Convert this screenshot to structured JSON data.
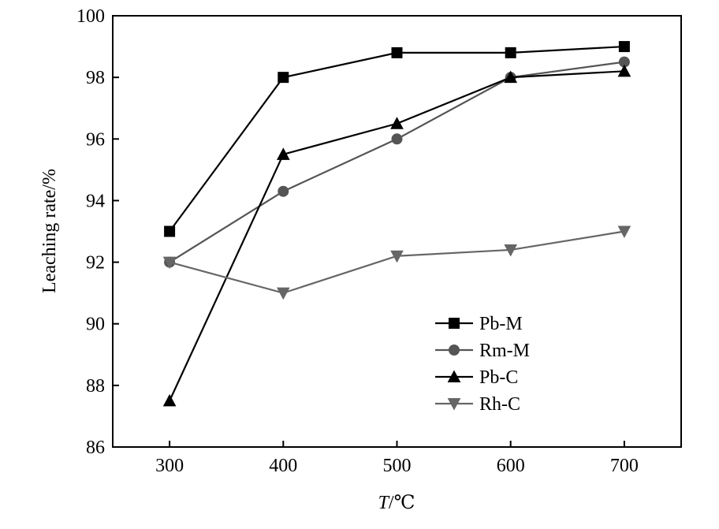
{
  "chart_data": {
    "type": "line",
    "title": "",
    "xlabel_italic": "T",
    "xlabel_rest": "/℃",
    "ylabel": "Leaching rate/%",
    "x": [
      300,
      400,
      500,
      600,
      700
    ],
    "xlim": [
      250,
      750
    ],
    "ylim": [
      86,
      100
    ],
    "xticks": [
      300,
      400,
      500,
      600,
      700
    ],
    "yticks": [
      86,
      88,
      90,
      92,
      94,
      96,
      98,
      100
    ],
    "grid": false,
    "legend_position": "lower-right",
    "series": [
      {
        "name": "Pb-M",
        "marker": "square",
        "color": "#000000",
        "values": [
          93.0,
          98.0,
          98.8,
          98.8,
          99.0
        ]
      },
      {
        "name": "Rm-M",
        "marker": "circle",
        "color": "#555555",
        "values": [
          92.0,
          94.3,
          96.0,
          98.0,
          98.5
        ]
      },
      {
        "name": "Pb-C",
        "marker": "triangle-up",
        "color": "#000000",
        "values": [
          87.5,
          95.5,
          96.5,
          98.0,
          98.2
        ]
      },
      {
        "name": "Rh-C",
        "marker": "triangle-down",
        "color": "#666666",
        "values": [
          92.0,
          91.0,
          92.2,
          92.4,
          93.0
        ]
      }
    ]
  }
}
